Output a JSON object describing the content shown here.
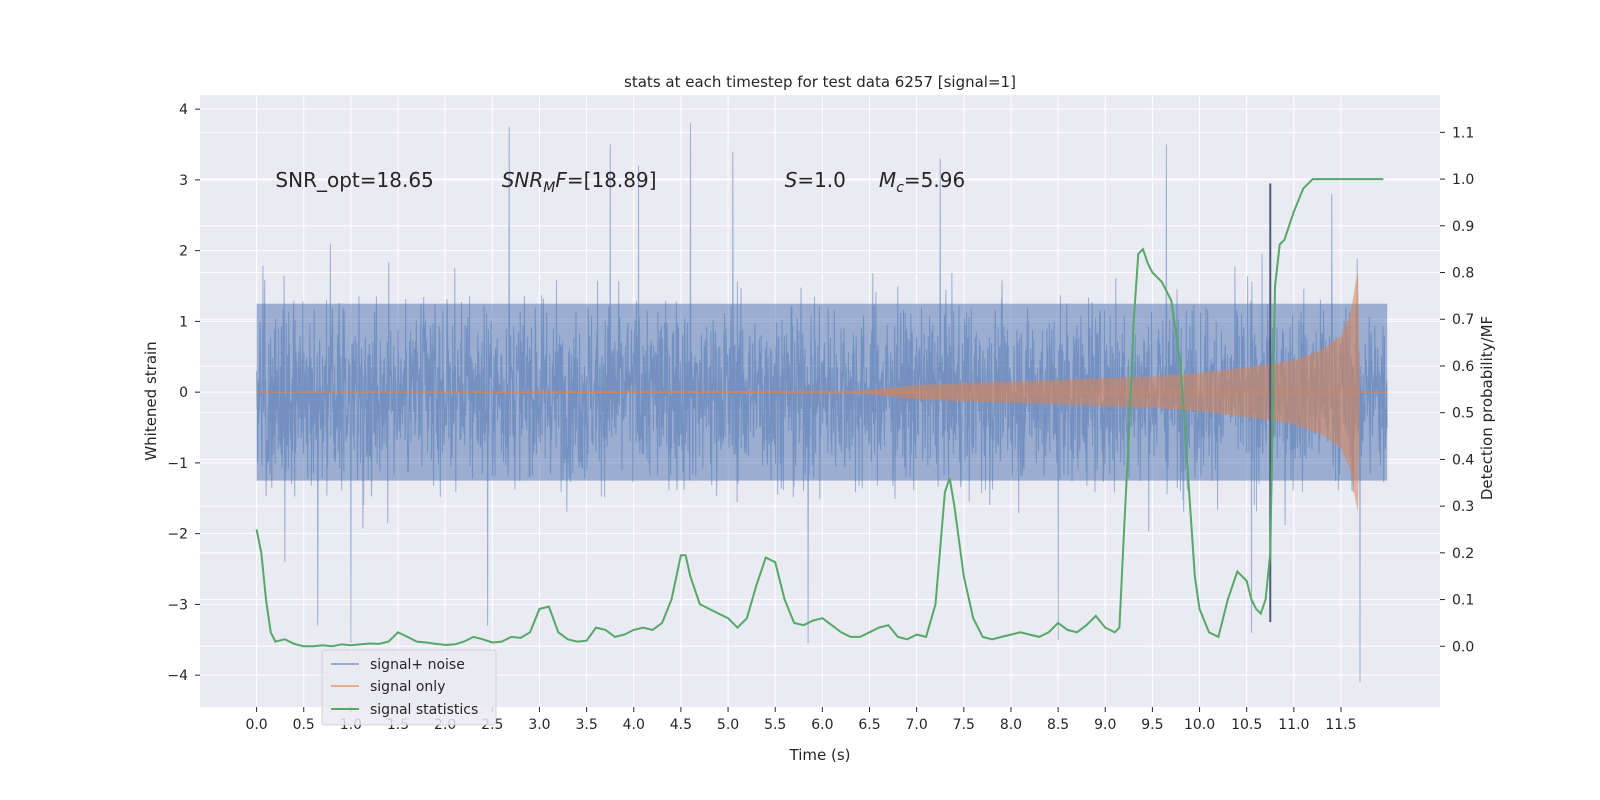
{
  "chart_data": {
    "type": "line",
    "title": "stats at each timestep for test data 6257 [signal=1]",
    "xlabel": "Time (s)",
    "ylabel": "Whitened strain",
    "y2label": "Detection probability/MF",
    "xlim": [
      -0.6,
      12.55
    ],
    "ylim": [
      -4.45,
      4.2
    ],
    "y2lim": [
      -0.13,
      1.18
    ],
    "x_ticks": [
      0.0,
      0.5,
      1.0,
      1.5,
      2.0,
      2.5,
      3.0,
      3.5,
      4.0,
      4.5,
      5.0,
      5.5,
      6.0,
      6.5,
      7.0,
      7.5,
      8.0,
      8.5,
      9.0,
      9.5,
      10.0,
      10.5,
      11.0,
      11.5
    ],
    "y_ticks": [
      -4,
      -3,
      -2,
      -1,
      0,
      1,
      2,
      3,
      4
    ],
    "y2_ticks": [
      0.0,
      0.1,
      0.2,
      0.3,
      0.4,
      0.5,
      0.6,
      0.7,
      0.8,
      0.9,
      1.0,
      1.1
    ],
    "grid": true,
    "legend_position": "lower-left",
    "annotations": [
      {
        "text": "SNR_opt=18.65",
        "x": 0.2,
        "y": 3.0
      },
      {
        "text": "SNR",
        "sub": "M",
        "rest": "F=[18.89]",
        "italic": true,
        "x": 2.6,
        "y": 3.0
      },
      {
        "text": "S",
        "rest": "=1.0",
        "italic": true,
        "x": 5.6,
        "y": 3.0
      },
      {
        "text": "M",
        "sub": "c",
        "rest": "=5.96",
        "italic": true,
        "x": 6.6,
        "y": 3.0
      }
    ],
    "series": [
      {
        "name": "signal+ noise",
        "color": "#4c72b0",
        "axis": "left",
        "x_range": [
          0.0,
          11.99
        ],
        "typical_band": [
          -1.25,
          1.25
        ],
        "peak_range": [
          -4.1,
          3.8
        ],
        "notable_extremes": [
          {
            "x": 0.3,
            "y": -2.4
          },
          {
            "x": 0.65,
            "y": -3.3
          },
          {
            "x": 1.0,
            "y": -3.55
          },
          {
            "x": 2.45,
            "y": -3.3
          },
          {
            "x": 2.68,
            "y": 3.75
          },
          {
            "x": 3.75,
            "y": 3.5
          },
          {
            "x": 4.6,
            "y": 3.8
          },
          {
            "x": 4.05,
            "y": 3.2
          },
          {
            "x": 5.05,
            "y": 3.4
          },
          {
            "x": 5.85,
            "y": -3.55
          },
          {
            "x": 7.25,
            "y": 3.3
          },
          {
            "x": 8.5,
            "y": -3.5
          },
          {
            "x": 9.65,
            "y": 3.5
          },
          {
            "x": 10.55,
            "y": -3.4
          },
          {
            "x": 11.7,
            "y": -4.1
          },
          {
            "x": 11.4,
            "y": 2.8
          }
        ]
      },
      {
        "name": "signal only",
        "color": "#dd8452",
        "axis": "left",
        "x_range": [
          0.0,
          11.99
        ],
        "envelope": [
          [
            6.4,
            0.02
          ],
          [
            7.0,
            0.1
          ],
          [
            7.5,
            0.13
          ],
          [
            8.0,
            0.15
          ],
          [
            8.5,
            0.17
          ],
          [
            9.0,
            0.2
          ],
          [
            9.5,
            0.22
          ],
          [
            10.0,
            0.27
          ],
          [
            10.5,
            0.35
          ],
          [
            11.0,
            0.45
          ],
          [
            11.3,
            0.6
          ],
          [
            11.5,
            0.8
          ],
          [
            11.6,
            1.1
          ],
          [
            11.65,
            1.5
          ],
          [
            11.68,
            1.7
          ],
          [
            11.7,
            0.0
          ]
        ]
      },
      {
        "name": "signal statistics",
        "color": "#55a868",
        "axis": "right",
        "x": [
          0.0,
          0.05,
          0.1,
          0.15,
          0.2,
          0.3,
          0.4,
          0.5,
          0.6,
          0.7,
          0.8,
          0.9,
          1.0,
          1.1,
          1.2,
          1.3,
          1.4,
          1.5,
          1.6,
          1.7,
          1.8,
          1.9,
          2.0,
          2.1,
          2.2,
          2.3,
          2.4,
          2.5,
          2.6,
          2.7,
          2.8,
          2.9,
          3.0,
          3.1,
          3.2,
          3.3,
          3.4,
          3.5,
          3.6,
          3.7,
          3.8,
          3.9,
          4.0,
          4.1,
          4.2,
          4.3,
          4.4,
          4.5,
          4.55,
          4.6,
          4.7,
          4.8,
          4.9,
          5.0,
          5.1,
          5.2,
          5.3,
          5.4,
          5.5,
          5.6,
          5.7,
          5.8,
          5.9,
          6.0,
          6.1,
          6.2,
          6.3,
          6.4,
          6.5,
          6.6,
          6.7,
          6.8,
          6.9,
          7.0,
          7.1,
          7.2,
          7.3,
          7.35,
          7.4,
          7.5,
          7.6,
          7.7,
          7.8,
          7.9,
          8.0,
          8.1,
          8.2,
          8.3,
          8.4,
          8.5,
          8.6,
          8.7,
          8.8,
          8.9,
          9.0,
          9.1,
          9.15,
          9.2,
          9.25,
          9.3,
          9.35,
          9.4,
          9.45,
          9.5,
          9.6,
          9.7,
          9.8,
          9.85,
          9.9,
          9.95,
          10.0,
          10.1,
          10.2,
          10.3,
          10.4,
          10.5,
          10.55,
          10.6,
          10.65,
          10.7,
          10.75,
          10.8,
          10.85,
          10.9,
          11.0,
          11.1,
          11.2,
          11.3,
          11.4,
          11.5,
          11.6,
          11.7,
          11.8,
          11.9,
          11.95
        ],
        "values": [
          0.25,
          0.2,
          0.1,
          0.03,
          0.01,
          0.015,
          0.005,
          0.0,
          0.0,
          0.002,
          0.0,
          0.004,
          0.002,
          0.004,
          0.006,
          0.005,
          0.01,
          0.03,
          0.02,
          0.01,
          0.008,
          0.005,
          0.003,
          0.004,
          0.01,
          0.02,
          0.015,
          0.008,
          0.01,
          0.02,
          0.018,
          0.03,
          0.08,
          0.085,
          0.03,
          0.015,
          0.01,
          0.012,
          0.04,
          0.035,
          0.02,
          0.025,
          0.035,
          0.04,
          0.035,
          0.05,
          0.1,
          0.195,
          0.195,
          0.15,
          0.09,
          0.08,
          0.07,
          0.06,
          0.04,
          0.06,
          0.13,
          0.19,
          0.18,
          0.1,
          0.05,
          0.045,
          0.055,
          0.06,
          0.045,
          0.03,
          0.02,
          0.02,
          0.03,
          0.04,
          0.045,
          0.02,
          0.015,
          0.025,
          0.02,
          0.09,
          0.33,
          0.36,
          0.3,
          0.15,
          0.06,
          0.02,
          0.015,
          0.02,
          0.025,
          0.03,
          0.025,
          0.02,
          0.03,
          0.05,
          0.035,
          0.03,
          0.045,
          0.065,
          0.04,
          0.03,
          0.04,
          0.25,
          0.45,
          0.69,
          0.84,
          0.85,
          0.82,
          0.8,
          0.78,
          0.74,
          0.6,
          0.45,
          0.3,
          0.15,
          0.08,
          0.03,
          0.02,
          0.1,
          0.16,
          0.14,
          0.1,
          0.08,
          0.07,
          0.1,
          0.2,
          0.77,
          0.86,
          0.87,
          0.93,
          0.98,
          1.0,
          1.0,
          1.0,
          1.0,
          1.0,
          1.0,
          1.0,
          1.0,
          1.0
        ]
      },
      {
        "name": "",
        "color": "#4c5a7a",
        "axis": "left",
        "kind": "vertical-line",
        "x": 10.75,
        "y_range": [
          -3.25,
          2.95
        ]
      }
    ]
  }
}
